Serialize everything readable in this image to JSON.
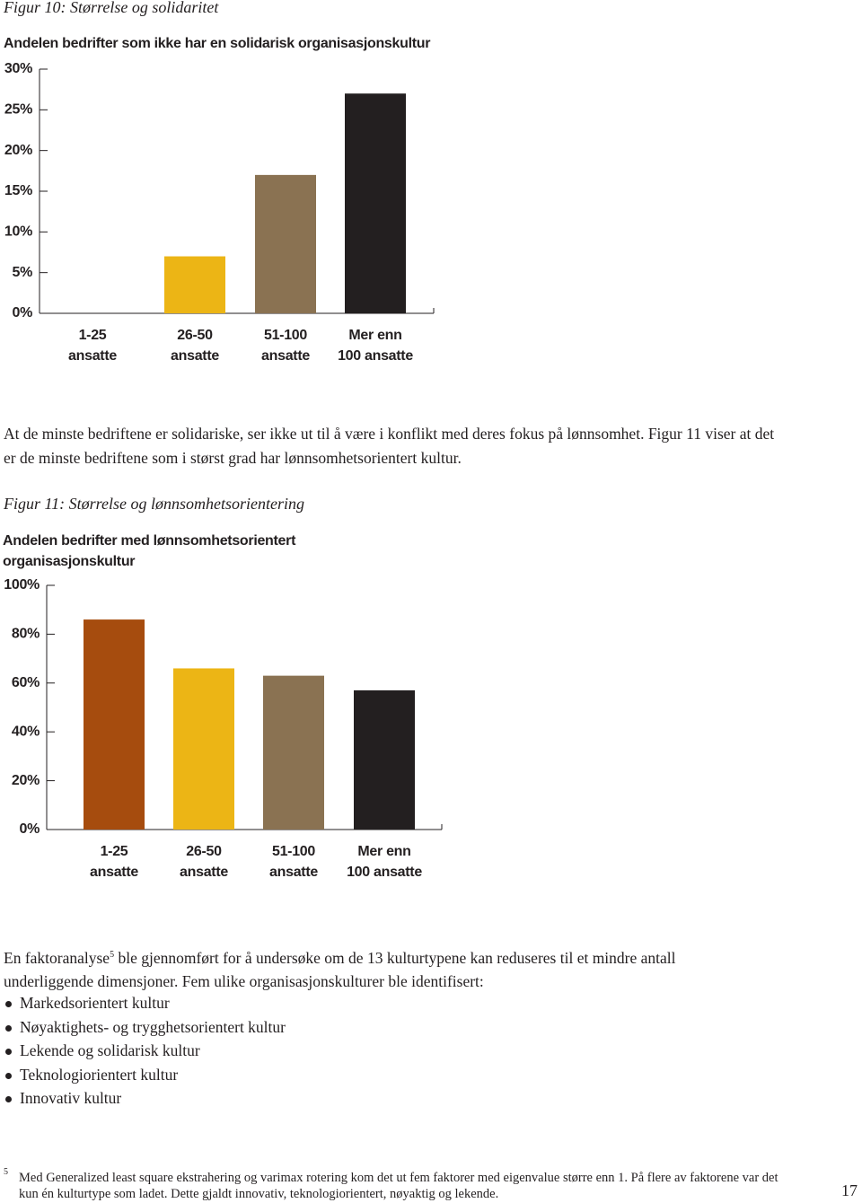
{
  "figure10_caption": "Figur 10: Størrelse og solidaritet",
  "paragraph1": "At de minste bedriftene er solidariske, ser ikke ut til å være i konflikt med deres fokus på lønnsomhet. Figur 11 viser at det er de minste bedriftene som i størst grad har lønnsomhetsorientert kultur.",
  "figure11_caption": "Figur 11: Størrelse og lønnsomhetsorientering",
  "chart_data": [
    {
      "type": "bar",
      "title": "Andelen bedrifter som ikke har en solidarisk organisasjonskultur",
      "categories": [
        "1-25\nansatte",
        "26-50\nansatte",
        "51-100\nansatte",
        "Mer enn\n100 ansatte"
      ],
      "values": [
        0,
        7,
        17,
        27
      ],
      "colors": [
        "#a64c0e",
        "#ecb515",
        "#8a7252",
        "#231f20"
      ],
      "ylim": [
        0,
        30
      ],
      "yticks": [
        {
          "value": 0,
          "label": "0%"
        },
        {
          "value": 5,
          "label": "5%"
        },
        {
          "value": 10,
          "label": "10%"
        },
        {
          "value": 15,
          "label": "15%"
        },
        {
          "value": 20,
          "label": "20%"
        },
        {
          "value": 25,
          "label": "25%"
        },
        {
          "value": 30,
          "label": "30%"
        }
      ]
    },
    {
      "type": "bar",
      "title": "Andelen bedrifter med lønnsomhetsorientert\norganisasjonskultur",
      "categories": [
        "1-25\nansatte",
        "26-50\nansatte",
        "51-100\nansatte",
        "Mer enn\n100 ansatte"
      ],
      "values": [
        86,
        66,
        63,
        57
      ],
      "colors": [
        "#a64c0e",
        "#ecb515",
        "#8a7252",
        "#231f20"
      ],
      "ylim": [
        0,
        100
      ],
      "yticks": [
        {
          "value": 0,
          "label": "0%"
        },
        {
          "value": 20,
          "label": "20%"
        },
        {
          "value": 40,
          "label": "40%"
        },
        {
          "value": 60,
          "label": "60%"
        },
        {
          "value": 80,
          "label": "80%"
        },
        {
          "value": 100,
          "label": "100%"
        }
      ]
    }
  ],
  "paragraph2": {
    "before": "En faktoranalyse",
    "footnote_ref": "5",
    "after": " ble gjennomført for å undersøke om de 13 kulturtypene kan reduseres til et mindre antall underliggende dimensjoner. Fem ulike organisasjonskulturer ble identifisert:"
  },
  "bullets": [
    "Markedsorientert kultur",
    "Nøyaktighets- og trygghetsorientert kultur",
    "Lekende og solidarisk kultur",
    "Teknologiorientert kultur",
    "Innovativ kultur"
  ],
  "footnote": {
    "marker": "5",
    "text": "Med Generalized least square ekstrahering og varimax rotering kom det ut fem faktorer med eigenvalue større enn 1. På flere av faktorene var det kun én kulturtype som ladet. Dette gjaldt innovativ, teknologiorientert, nøyaktig og lekende."
  },
  "page_number": "17"
}
